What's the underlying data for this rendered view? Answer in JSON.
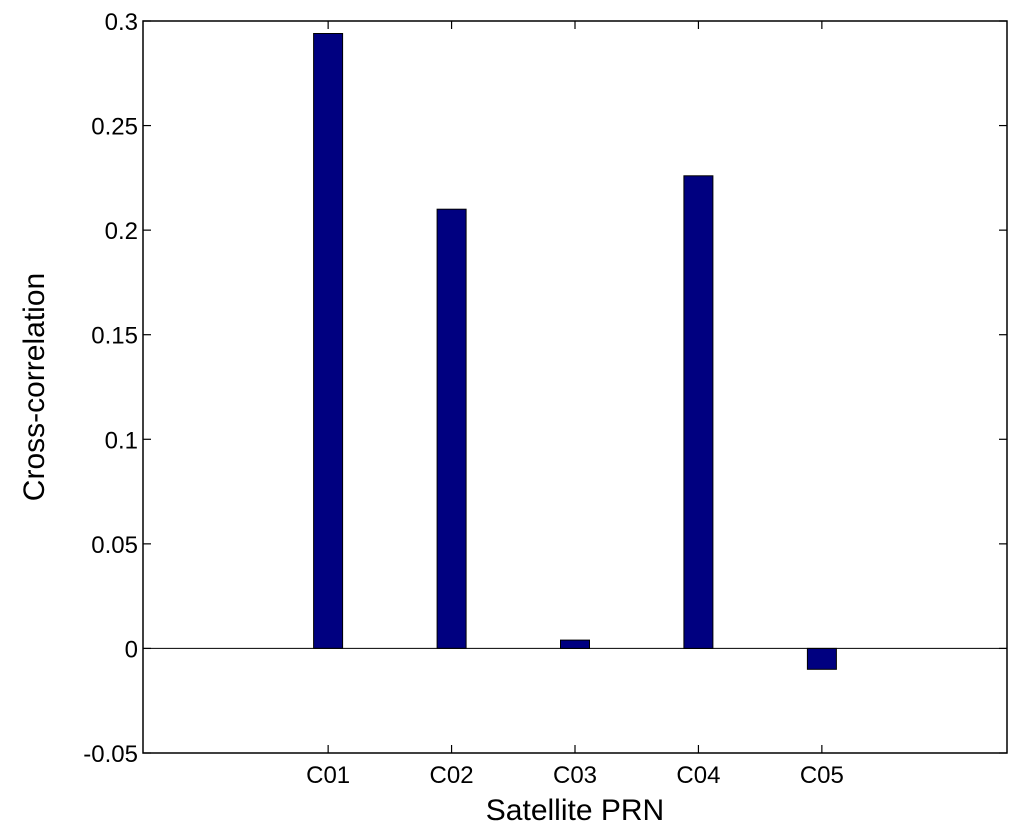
{
  "chart_data": {
    "type": "bar",
    "title": "",
    "xlabel": "Satellite PRN",
    "ylabel": "Cross-correlation",
    "categories": [
      "C01",
      "C02",
      "C03",
      "C04",
      "C05"
    ],
    "values": [
      0.294,
      0.21,
      0.004,
      0.226,
      -0.01
    ],
    "ylim": [
      -0.05,
      0.3
    ],
    "yticks": [
      -0.05,
      0,
      0.05,
      0.1,
      0.15,
      0.2,
      0.25,
      0.3
    ],
    "ytick_labels": [
      "-0.05",
      "0",
      "0.05",
      "0.1",
      "0.15",
      "0.2",
      "0.25",
      "0.3"
    ],
    "grid": false,
    "legend": "none",
    "bar_color": "#000080",
    "bar_edge_color": "#000000"
  }
}
